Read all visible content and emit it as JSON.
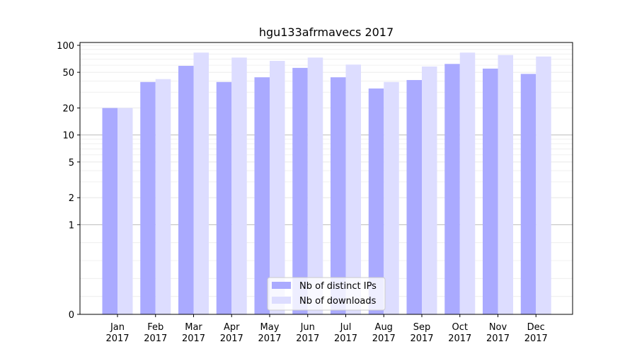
{
  "chart_data": {
    "type": "bar",
    "title": "hgu133afrmavecs 2017",
    "scale": "symlog",
    "categories": [
      "Jan\n2017",
      "Feb\n2017",
      "Mar\n2017",
      "Apr\n2017",
      "May\n2017",
      "Jun\n2017",
      "Jul\n2017",
      "Aug\n2017",
      "Sep\n2017",
      "Oct\n2017",
      "Nov\n2017",
      "Dec\n2017"
    ],
    "series": [
      {
        "name": "Nb of distinct IPs",
        "color": "#aaaaff",
        "values": [
          20,
          39,
          59,
          39,
          44,
          56,
          44,
          33,
          41,
          62,
          55,
          48
        ]
      },
      {
        "name": "Nb of downloads",
        "color": "#ddddff",
        "values": [
          20,
          42,
          83,
          73,
          67,
          73,
          61,
          39,
          58,
          83,
          78,
          75
        ]
      }
    ],
    "yticks": [
      0,
      1,
      2,
      5,
      10,
      20,
      50,
      100
    ],
    "ylim": [
      0,
      110
    ],
    "grid": true,
    "legend_position": "bottom-center"
  }
}
